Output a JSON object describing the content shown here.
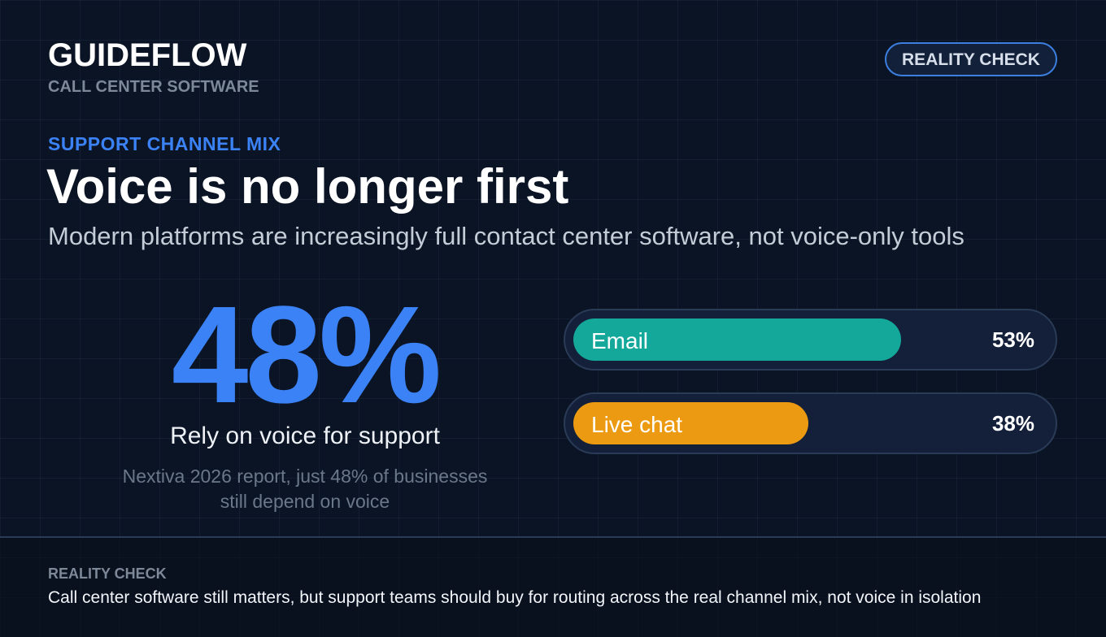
{
  "header": {
    "brand": "GUIDEFLOW",
    "subtitle": "CALL CENTER SOFTWARE",
    "badge": "REALITY CHECK"
  },
  "headline": {
    "kicker": "SUPPORT CHANNEL MIX",
    "title": "Voice is no longer first",
    "subtitle": "Modern platforms are increasingly full contact center software, not voice-only tools"
  },
  "stat": {
    "value": "48%",
    "label": "Rely on voice for support",
    "note_lines": [
      "Nextiva 2026 report, just 48% of businesses",
      "still depend on voice"
    ]
  },
  "bars": [
    {
      "label": "Email",
      "value": 53,
      "value_label": "53%",
      "color": "#14a89a"
    },
    {
      "label": "Live chat",
      "value": 38,
      "value_label": "38%",
      "color": "#ec9a12"
    }
  ],
  "footer": {
    "title": "REALITY CHECK",
    "text": "Call center software still matters, but support teams should buy for routing across the real channel mix, not voice in isolation"
  }
}
